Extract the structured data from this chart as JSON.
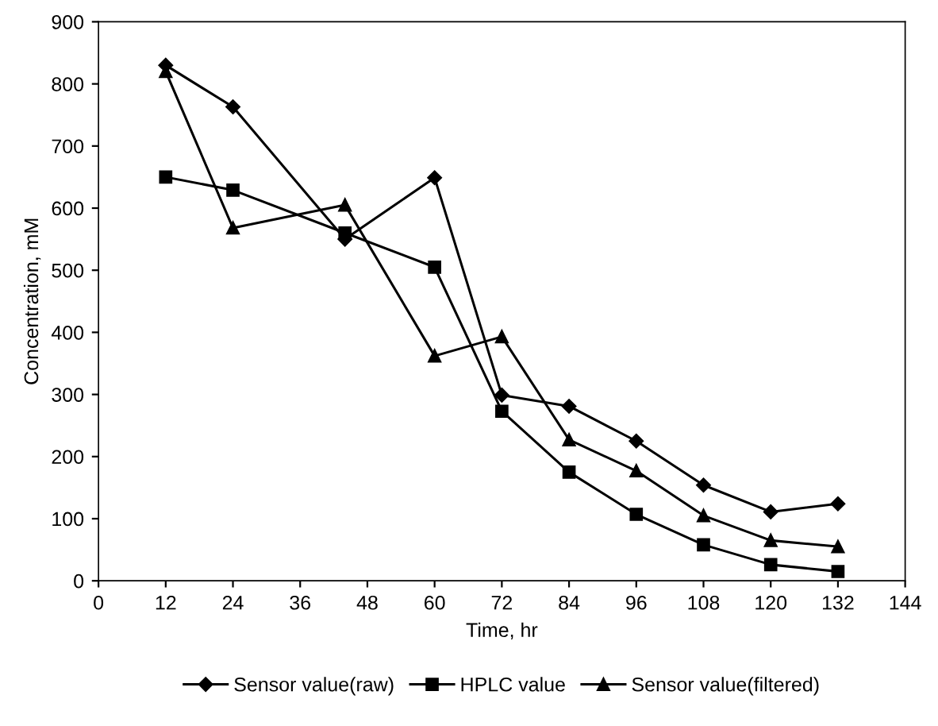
{
  "chart_data": {
    "type": "line",
    "xlabel": "Time, hr",
    "ylabel": "Concentration, mM",
    "x": [
      12,
      24,
      44,
      60,
      72,
      84,
      96,
      108,
      120,
      132
    ],
    "series": [
      {
        "name": "Sensor value(raw)",
        "color": "#000000",
        "marker": "diamond",
        "values": [
          830,
          763,
          550,
          649,
          299,
          281,
          225,
          154,
          111,
          124
        ]
      },
      {
        "name": "HPLC value",
        "color": "#000000",
        "marker": "square",
        "values": [
          650,
          629,
          560,
          505,
          273,
          175,
          107,
          58,
          26,
          15
        ]
      },
      {
        "name": "Sensor value(filtered)",
        "color": "#000000",
        "marker": "triangle",
        "values": [
          820,
          568,
          605,
          362,
          393,
          227,
          177,
          105,
          65,
          55
        ]
      }
    ],
    "xlim": [
      0,
      144
    ],
    "xticks": [
      0,
      12,
      24,
      36,
      48,
      60,
      72,
      84,
      96,
      108,
      120,
      132,
      144
    ],
    "ylim": [
      0,
      900
    ],
    "yticks": [
      0,
      100,
      200,
      300,
      400,
      500,
      600,
      700,
      800,
      900
    ],
    "grid": false,
    "legend": "bottom",
    "line_style": "solid"
  }
}
